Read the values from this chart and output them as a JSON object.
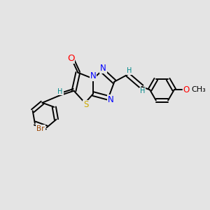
{
  "bg_color": "#e4e4e4",
  "bond_color": "#000000",
  "atom_colors": {
    "O": "#ff0000",
    "N": "#0000ff",
    "S": "#ccaa00",
    "Br": "#994400",
    "C": "#000000",
    "H": "#008888"
  },
  "font_size_atom": 8.5,
  "font_size_small": 7.0,
  "line_width": 1.4,
  "figsize": [
    3.0,
    3.0
  ],
  "dpi": 100,
  "xlim": [
    0,
    10
  ],
  "ylim": [
    0,
    10
  ]
}
